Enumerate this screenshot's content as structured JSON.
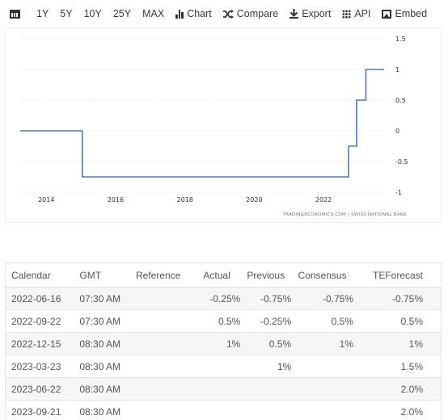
{
  "toolbar": {
    "ranges": [
      "1Y",
      "5Y",
      "10Y",
      "25Y",
      "MAX"
    ],
    "chart_label": "Chart",
    "compare_label": "Compare",
    "export_label": "Export",
    "api_label": "API",
    "embed_label": "Embed"
  },
  "chart": {
    "attribution": "TRADINGECONOMICS.COM | SWISS NATIONAL BANK",
    "line_color": "#4a7bb5"
  },
  "chart_data": {
    "type": "line",
    "title": "",
    "xlabel": "",
    "ylabel": "",
    "x_ticks": [
      "2014",
      "2016",
      "2018",
      "2020",
      "2022"
    ],
    "y_ticks": [
      "1.5",
      "1",
      "0.5",
      "0",
      "-0.5",
      "-1"
    ],
    "xlim": [
      "2013-04-01",
      "2023-10-01"
    ],
    "ylim": [
      -1,
      1.5
    ],
    "grid": true,
    "series": [
      {
        "x": [
          "2013-04-01",
          "2014-12-18",
          "2015-01-15",
          "2022-06-16",
          "2022-09-22",
          "2022-12-15",
          "2023-03-23",
          "2023-06-22",
          "2023-10-01"
        ],
        "y": [
          0,
          0,
          -0.75,
          -0.75,
          -0.25,
          0.5,
          1.0,
          1.0,
          1.0
        ]
      }
    ]
  },
  "table": {
    "headers": {
      "calendar": "Calendar",
      "gmt": "GMT",
      "reference": "Reference",
      "actual": "Actual",
      "previous": "Previous",
      "consensus": "Consensus",
      "teforecast": "TEForecast"
    },
    "rows": [
      {
        "date": "2022-06-16",
        "gmt": "07:30 AM",
        "reference": "",
        "actual": "-0.25%",
        "previous": "-0.75%",
        "consensus": "-0.75%",
        "teforecast": "-0.75%"
      },
      {
        "date": "2022-09-22",
        "gmt": "07:30 AM",
        "reference": "",
        "actual": "0.5%",
        "previous": "-0.25%",
        "consensus": "0.5%",
        "teforecast": "0.5%"
      },
      {
        "date": "2022-12-15",
        "gmt": "08:30 AM",
        "reference": "",
        "actual": "1%",
        "previous": "0.5%",
        "consensus": "1%",
        "teforecast": "1%"
      },
      {
        "date": "2023-03-23",
        "gmt": "08:30 AM",
        "reference": "",
        "actual": "",
        "previous": "1%",
        "consensus": "",
        "teforecast": "1.5%"
      },
      {
        "date": "2023-06-22",
        "gmt": "08:30 AM",
        "reference": "",
        "actual": "",
        "previous": "",
        "consensus": "",
        "teforecast": "2.0%"
      },
      {
        "date": "2023-09-21",
        "gmt": "08:30 AM",
        "reference": "",
        "actual": "",
        "previous": "",
        "consensus": "",
        "teforecast": "2.0%"
      }
    ]
  }
}
